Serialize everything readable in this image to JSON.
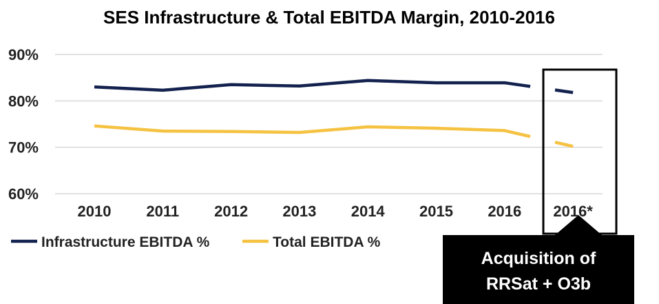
{
  "chart_data": {
    "type": "line",
    "title": "SES Infrastructure & Total EBITDA Margin, 2010-2016",
    "categories": [
      "2010",
      "2011",
      "2012",
      "2013",
      "2014",
      "2015",
      "2016",
      "2016*"
    ],
    "y_tick_labels": [
      "90%",
      "80%",
      "70%",
      "60%"
    ],
    "y_ticks": [
      90,
      80,
      70,
      60
    ],
    "ylim": [
      60,
      90
    ],
    "grid": true,
    "legend_position": "bottom-left",
    "series": [
      {
        "name": "Infrastructure EBITDA %",
        "color": "#13214e",
        "values": [
          83.0,
          82.3,
          83.5,
          83.2,
          84.4,
          83.9,
          83.9,
          81.8
        ]
      },
      {
        "name": "Total EBITDA %",
        "color": "#f5c242",
        "values": [
          74.6,
          73.5,
          73.4,
          73.2,
          74.4,
          74.1,
          73.6,
          70.2
        ]
      }
    ],
    "highlight_category": "2016*",
    "annotation": {
      "lines": [
        "Acquisition of",
        "RRSat + O3b"
      ]
    }
  }
}
